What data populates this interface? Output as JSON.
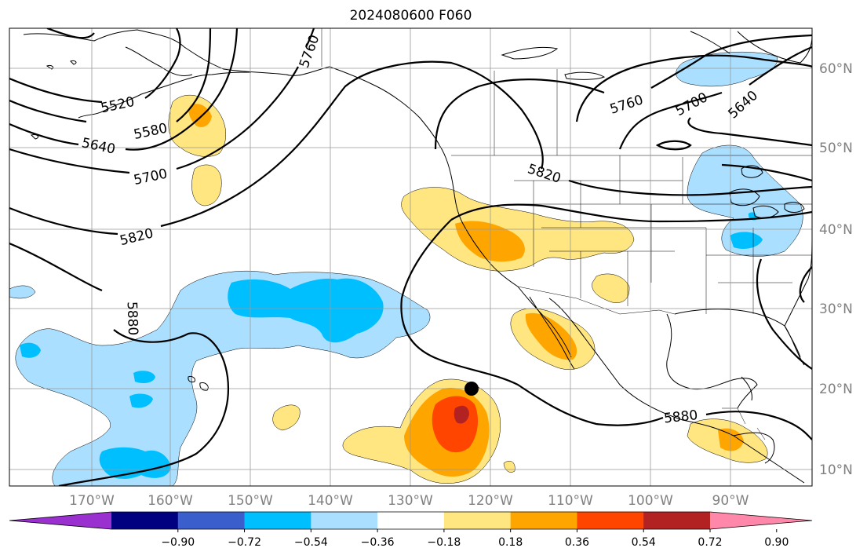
{
  "title": "2024080600 F060",
  "map": {
    "lon_labels": [
      "170°W",
      "160°W",
      "150°W",
      "140°W",
      "130°W",
      "120°W",
      "110°W",
      "100°W",
      "90°W"
    ],
    "lat_labels": [
      "60°N",
      "50°N",
      "40°N",
      "30°N",
      "20°N",
      "10°N"
    ],
    "height_contours": {
      "levels": [
        "5520",
        "5580",
        "5640",
        "5700",
        "5760",
        "5820",
        "5880"
      ],
      "labels_shown": [
        "5520",
        "5580",
        "5640",
        "5700",
        "5820",
        "5880",
        "5760",
        "5820",
        "5760",
        "5700",
        "5640",
        "5880"
      ]
    },
    "storm_center_marker": "filled-black-circle"
  },
  "colorbar": {
    "ticks": [
      "−0.90",
      "−0.72",
      "−0.54",
      "−0.36",
      "−0.18",
      "0.18",
      "0.36",
      "0.54",
      "0.72",
      "0.90"
    ],
    "colors": [
      "#9b30d0",
      "#000080",
      "#3a5fcd",
      "#00bfff",
      "#aadfff",
      "#ffffff",
      "#ffe680",
      "#ffa500",
      "#ff4500",
      "#b22222",
      "#ff88aa"
    ]
  }
}
